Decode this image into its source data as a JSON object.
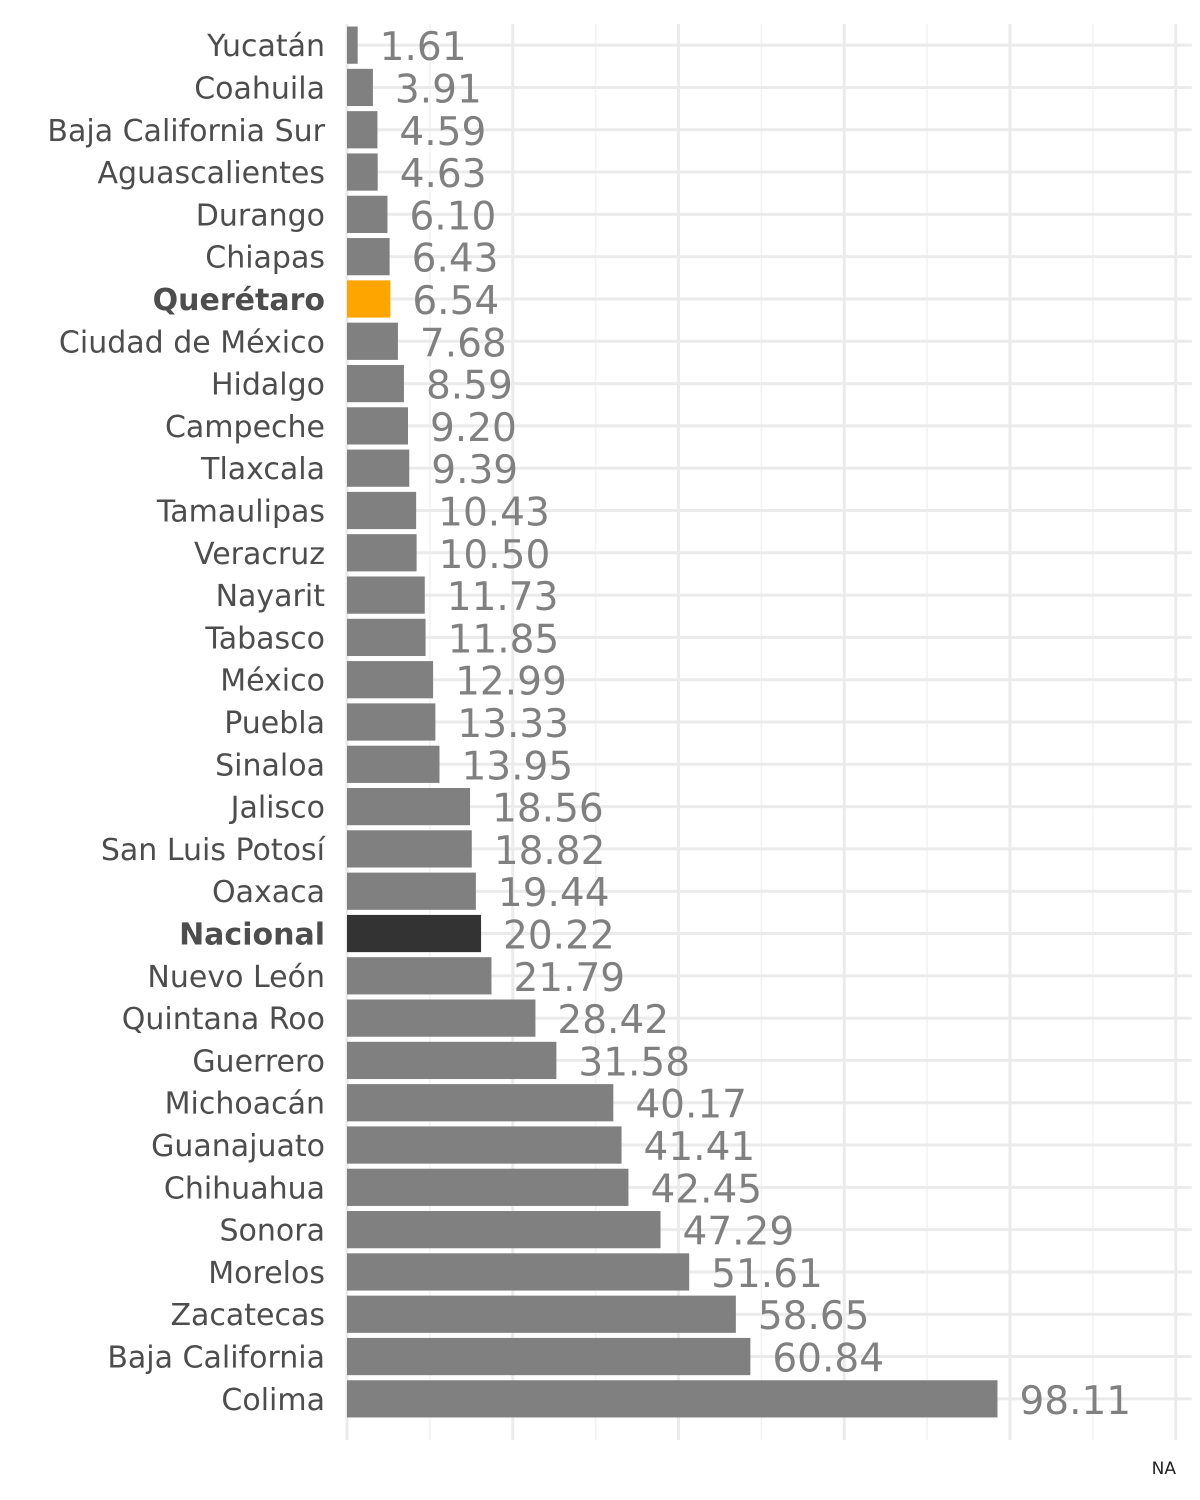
{
  "chart_data": {
    "type": "bar",
    "orientation": "horizontal",
    "categories": [
      "Yucatán",
      "Coahuila",
      "Baja California Sur",
      "Aguascalientes",
      "Durango",
      "Chiapas",
      "Querétaro",
      "Ciudad de México",
      "Hidalgo",
      "Campeche",
      "Tlaxcala",
      "Tamaulipas",
      "Veracruz",
      "Nayarit",
      "Tabasco",
      "México",
      "Puebla",
      "Sinaloa",
      "Jalisco",
      "San Luis Potosí",
      "Oaxaca",
      "Nacional",
      "Nuevo León",
      "Quintana Roo",
      "Guerrero",
      "Michoacán",
      "Guanajuato",
      "Chihuahua",
      "Sonora",
      "Morelos",
      "Zacatecas",
      "Baja California",
      "Colima"
    ],
    "values": [
      1.61,
      3.91,
      4.59,
      4.63,
      6.1,
      6.43,
      6.54,
      7.68,
      8.59,
      9.2,
      9.39,
      10.43,
      10.5,
      11.73,
      11.85,
      12.99,
      13.33,
      13.95,
      18.56,
      18.82,
      19.44,
      20.22,
      21.79,
      28.42,
      31.58,
      40.17,
      41.41,
      42.45,
      47.29,
      51.61,
      58.65,
      60.84,
      98.11
    ],
    "value_labels": [
      "1.61",
      "3.91",
      "4.59",
      "4.63",
      "6.10",
      "6.43",
      "6.54",
      "7.68",
      "8.59",
      "9.20",
      "9.39",
      "10.43",
      "10.50",
      "11.73",
      "11.85",
      "12.99",
      "13.33",
      "13.95",
      "18.56",
      "18.82",
      "19.44",
      "20.22",
      "21.79",
      "28.42",
      "31.58",
      "40.17",
      "41.41",
      "42.45",
      "47.29",
      "51.61",
      "58.65",
      "60.84",
      "98.11"
    ],
    "highlight": {
      "Querétaro": "#FFA500",
      "Nacional": "#333333"
    },
    "default_color": "#808080",
    "grid": true,
    "x_axis_visible": false,
    "title": "",
    "xlabel": "",
    "ylabel": "",
    "xlim": [
      0,
      125
    ]
  },
  "caption": "NA"
}
